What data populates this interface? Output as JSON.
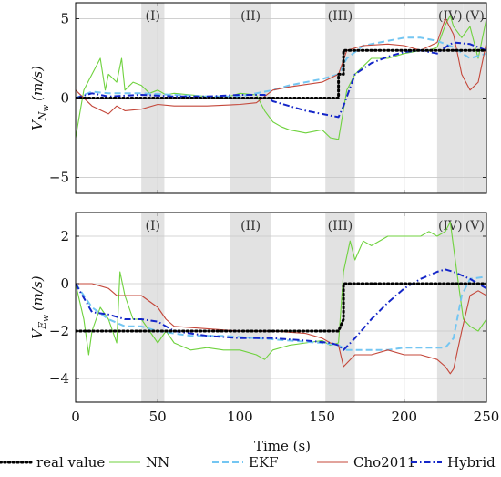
{
  "figure": {
    "xlabel": "Time (s)"
  },
  "chart_data": [
    {
      "type": "line",
      "ylabel": "V_{N_w} (m/s)",
      "ylabel_main": "V",
      "ylabel_sub": "N",
      "ylabel_subsub": "w",
      "ylabel_unit": "(m/s)",
      "xlim": [
        0,
        250
      ],
      "ylim": [
        -6,
        6
      ],
      "xticks": [
        0,
        50,
        100,
        150,
        200,
        250
      ],
      "yticks": [
        -5,
        0,
        5
      ],
      "ytick_labels": [
        "−5",
        "0",
        "5"
      ],
      "grid": true,
      "regions": [
        {
          "label": "(I)",
          "x0": 40,
          "x1": 54
        },
        {
          "label": "(II)",
          "x0": 94,
          "x1": 119
        },
        {
          "label": "(III)",
          "x0": 152,
          "x1": 170
        },
        {
          "label": "(IV)",
          "x0": 220,
          "x1": 236
        },
        {
          "label": "(V)",
          "x0": 236,
          "x1": 250
        }
      ],
      "series": [
        {
          "name": "real value",
          "x": [
            0,
            160,
            160,
            163,
            163,
            250
          ],
          "y": [
            0,
            0,
            1.5,
            1.5,
            3,
            3
          ]
        },
        {
          "name": "NN",
          "x": [
            0,
            5,
            10,
            15,
            18,
            20,
            25,
            28,
            30,
            35,
            40,
            45,
            50,
            55,
            60,
            70,
            80,
            90,
            100,
            110,
            115,
            120,
            125,
            130,
            140,
            150,
            155,
            160,
            165,
            170,
            175,
            180,
            190,
            200,
            210,
            215,
            220,
            225,
            228,
            230,
            235,
            240,
            245,
            250
          ],
          "y": [
            -2.5,
            0.5,
            1.5,
            2.5,
            0.5,
            1.5,
            1.0,
            2.5,
            0.5,
            1.0,
            0.8,
            0.3,
            0.5,
            0.2,
            0.3,
            0.2,
            0.1,
            0.0,
            0.3,
            0.2,
            -0.8,
            -1.5,
            -1.8,
            -2.0,
            -2.2,
            -2.0,
            -2.5,
            -2.6,
            0.5,
            1.5,
            2.0,
            2.5,
            2.5,
            2.8,
            3.0,
            3.0,
            3.2,
            4.6,
            5.2,
            4.5,
            3.8,
            4.5,
            2.5,
            5.0
          ]
        },
        {
          "name": "EKF",
          "x": [
            0,
            10,
            20,
            40,
            60,
            80,
            100,
            120,
            130,
            150,
            160,
            165,
            175,
            190,
            200,
            210,
            220,
            230,
            240,
            250
          ],
          "y": [
            0,
            0.4,
            0.3,
            0.3,
            0.2,
            0.1,
            0.1,
            0.5,
            0.8,
            1.2,
            1.5,
            2.5,
            3.3,
            3.6,
            3.8,
            3.8,
            3.6,
            3.2,
            2.5,
            2.8
          ]
        },
        {
          "name": "Cho2011",
          "x": [
            0,
            10,
            20,
            25,
            30,
            40,
            50,
            60,
            80,
            100,
            110,
            120,
            130,
            150,
            160,
            165,
            175,
            190,
            200,
            210,
            220,
            225,
            230,
            235,
            240,
            245,
            250
          ],
          "y": [
            0.5,
            -0.5,
            -1.0,
            -0.5,
            -0.8,
            -0.7,
            -0.4,
            -0.5,
            -0.5,
            -0.4,
            -0.3,
            0.5,
            0.7,
            1.0,
            1.5,
            3.0,
            3.3,
            3.4,
            3.3,
            3.0,
            3.5,
            5.0,
            4.0,
            1.5,
            0.5,
            1.0,
            3.5
          ]
        },
        {
          "name": "Hybrid",
          "x": [
            0,
            10,
            20,
            40,
            60,
            80,
            100,
            115,
            120,
            130,
            140,
            150,
            160,
            163,
            170,
            180,
            190,
            200,
            210,
            220,
            225,
            230,
            240,
            250
          ],
          "y": [
            0,
            0.3,
            0.1,
            0.2,
            0.1,
            0.1,
            0.2,
            0.2,
            -0.2,
            -0.5,
            -0.8,
            -1.0,
            -1.2,
            -0.5,
            1.5,
            2.2,
            2.6,
            2.9,
            3.0,
            2.8,
            3.2,
            3.5,
            3.4,
            3.0
          ]
        }
      ]
    },
    {
      "type": "line",
      "ylabel": "V_{E_w} (m/s)",
      "ylabel_main": "V",
      "ylabel_sub": "E",
      "ylabel_subsub": "w",
      "ylabel_unit": "(m/s)",
      "xlim": [
        0,
        250
      ],
      "ylim": [
        -5,
        3
      ],
      "xticks": [
        0,
        50,
        100,
        150,
        200,
        250
      ],
      "xtick_labels": [
        "0",
        "50",
        "100",
        "150",
        "200",
        "250"
      ],
      "yticks": [
        -4,
        -2,
        0,
        2
      ],
      "ytick_labels": [
        "−4",
        "−2",
        "0",
        "2"
      ],
      "grid": true,
      "regions": [
        {
          "label": "(I)",
          "x0": 40,
          "x1": 54
        },
        {
          "label": "(II)",
          "x0": 94,
          "x1": 119
        },
        {
          "label": "(III)",
          "x0": 152,
          "x1": 170
        },
        {
          "label": "(IV)",
          "x0": 220,
          "x1": 236
        },
        {
          "label": "(V)",
          "x0": 236,
          "x1": 250
        }
      ],
      "series": [
        {
          "name": "real value",
          "x": [
            0,
            160,
            163,
            163,
            250
          ],
          "y": [
            -2,
            -2,
            -1.5,
            0,
            0
          ]
        },
        {
          "name": "NN",
          "x": [
            0,
            5,
            8,
            10,
            15,
            20,
            25,
            27,
            30,
            35,
            40,
            50,
            55,
            60,
            70,
            80,
            90,
            100,
            110,
            115,
            120,
            130,
            140,
            150,
            155,
            160,
            163,
            167,
            170,
            175,
            180,
            190,
            200,
            210,
            215,
            220,
            225,
            228,
            232,
            236,
            240,
            245,
            250
          ],
          "y": [
            0,
            -1.5,
            -3.0,
            -2.0,
            -1.0,
            -1.5,
            -2.5,
            0.5,
            -0.5,
            -1.5,
            -1.5,
            -2.5,
            -2.0,
            -2.5,
            -2.8,
            -2.7,
            -2.8,
            -2.8,
            -3.0,
            -3.2,
            -2.8,
            -2.6,
            -2.5,
            -2.4,
            -2.6,
            -2.5,
            0.5,
            1.8,
            1.0,
            1.8,
            1.6,
            2.0,
            2.0,
            2.0,
            2.2,
            2.0,
            2.2,
            2.6,
            0.5,
            -1.5,
            -1.8,
            -2.0,
            -1.5
          ]
        },
        {
          "name": "EKF",
          "x": [
            0,
            5,
            10,
            20,
            30,
            40,
            50,
            70,
            90,
            110,
            130,
            150,
            160,
            165,
            175,
            190,
            200,
            210,
            220,
            225,
            230,
            235,
            240,
            250
          ],
          "y": [
            0,
            -0.5,
            -1.0,
            -1.5,
            -1.8,
            -1.8,
            -2.0,
            -2.2,
            -2.2,
            -2.3,
            -2.4,
            -2.5,
            -2.6,
            -2.8,
            -2.8,
            -2.8,
            -2.7,
            -2.7,
            -2.7,
            -2.7,
            -2.3,
            -0.5,
            0.2,
            0.3
          ]
        },
        {
          "name": "Cho2011",
          "x": [
            0,
            10,
            20,
            25,
            30,
            40,
            50,
            55,
            60,
            80,
            100,
            120,
            140,
            150,
            155,
            160,
            163,
            170,
            180,
            190,
            200,
            210,
            220,
            225,
            228,
            230,
            235,
            240,
            245,
            250
          ],
          "y": [
            0,
            0,
            -0.2,
            -0.5,
            -0.5,
            -0.5,
            -1.0,
            -1.5,
            -1.8,
            -1.9,
            -2.0,
            -2.0,
            -2.1,
            -2.3,
            -2.5,
            -2.6,
            -3.5,
            -3.0,
            -3.0,
            -2.8,
            -3.0,
            -3.0,
            -3.2,
            -3.5,
            -3.8,
            -3.6,
            -2.0,
            -0.5,
            -0.3,
            -0.5
          ]
        },
        {
          "name": "Hybrid",
          "x": [
            0,
            10,
            20,
            30,
            40,
            50,
            60,
            80,
            100,
            120,
            140,
            155,
            160,
            163,
            170,
            180,
            190,
            200,
            210,
            220,
            225,
            230,
            240,
            250
          ],
          "y": [
            0,
            -1.2,
            -1.3,
            -1.5,
            -1.5,
            -1.6,
            -2.0,
            -2.2,
            -2.3,
            -2.3,
            -2.4,
            -2.5,
            -2.6,
            -2.8,
            -2.3,
            -1.5,
            -0.8,
            -0.2,
            0.2,
            0.5,
            0.6,
            0.5,
            0.2,
            -0.2
          ]
        }
      ]
    }
  ],
  "legend": {
    "placement": "bottom",
    "entries": [
      {
        "label": "real value",
        "color": "#000000",
        "dash": "dotted"
      },
      {
        "label": "NN",
        "color": "#6fd23e",
        "dash": "solid"
      },
      {
        "label": "EKF",
        "color": "#74c6f2",
        "dash": "dashed"
      },
      {
        "label": "Cho2011",
        "color": "#c4473a",
        "dash": "solid"
      },
      {
        "label": "Hybrid",
        "color": "#1426c8",
        "dash": "dashdot"
      }
    ]
  }
}
